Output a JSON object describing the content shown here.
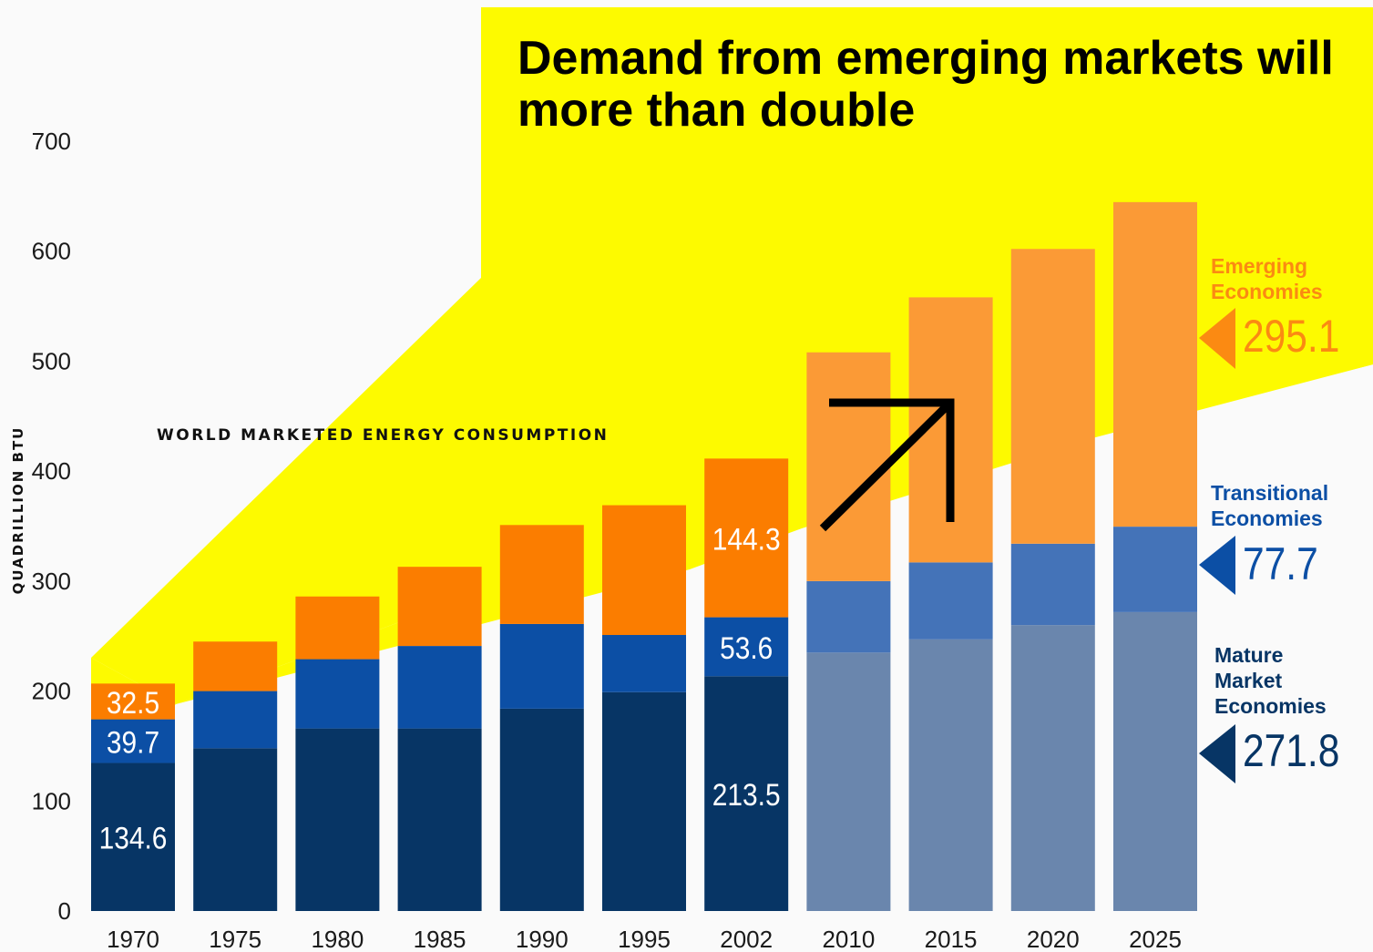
{
  "title": "Demand from emerging markets will more than double",
  "subtitle": "WORLD MARKETED ENERGY CONSUMPTION",
  "colors": {
    "background": "#fafafa",
    "highlight_yellow": "#fdfa00",
    "emerging_hist": "#fb7d00",
    "emerging_proj": "#fb9a36",
    "transitional_hist": "#0c4fa5",
    "transitional_proj": "#4473b8",
    "mature_hist": "#073565",
    "mature_proj": "#6a86ad",
    "emerging_label": "#fb8a12",
    "transitional_label": "#0c4fa5",
    "mature_label": "#073565"
  },
  "chart_data": {
    "type": "bar",
    "stacked": true,
    "categories": [
      "1970",
      "1975",
      "1980",
      "1985",
      "1990",
      "1995",
      "2002",
      "2010",
      "2015",
      "2020",
      "2025"
    ],
    "projected_from_index": 7,
    "ylabel": "QUADRILLION BTU",
    "ylim": [
      0,
      700
    ],
    "yticks": [
      0,
      100,
      200,
      300,
      400,
      500,
      600,
      700
    ],
    "series": [
      {
        "name": "Mature Market Economies",
        "values": [
          134.6,
          148,
          166,
          166,
          184,
          199,
          213.5,
          235,
          247,
          260,
          271.8
        ],
        "labels": [
          "134.6",
          "",
          "",
          "",
          "",
          "",
          "213.5",
          "",
          "",
          "",
          ""
        ]
      },
      {
        "name": "Transitional Economies",
        "values": [
          39.7,
          52,
          63,
          75,
          77,
          52,
          53.6,
          65,
          70,
          74,
          77.7
        ],
        "labels": [
          "39.7",
          "",
          "",
          "",
          "",
          "",
          "53.6",
          "",
          "",
          "",
          ""
        ]
      },
      {
        "name": "Emerging Economies",
        "values": [
          32.5,
          45,
          57,
          72,
          90,
          118,
          144.3,
          208,
          241,
          268,
          295.1
        ],
        "labels": [
          "32.5",
          "",
          "",
          "",
          "",
          "",
          "144.3",
          "",
          "",
          "",
          ""
        ]
      }
    ]
  },
  "legend": [
    {
      "label": "Emerging\nEconomies",
      "value": "295.1"
    },
    {
      "label": "Transitional\nEconomies",
      "value": "77.7"
    },
    {
      "label": "Mature\nMarket\nEconomies",
      "value": "271.8"
    }
  ]
}
